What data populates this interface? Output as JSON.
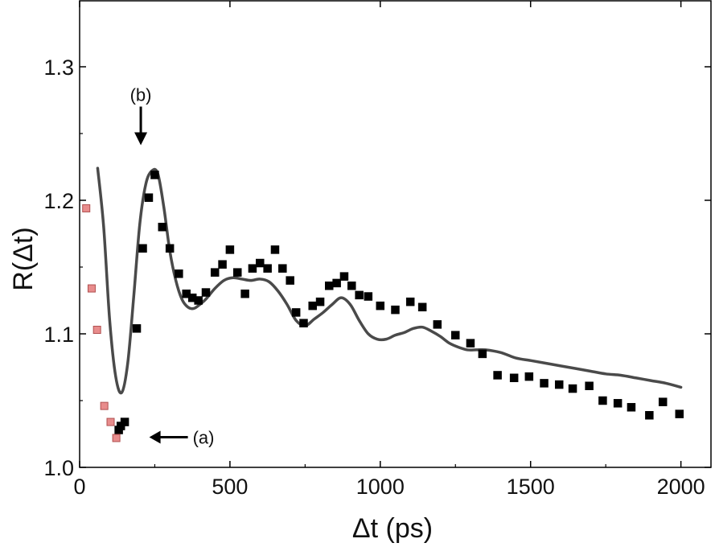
{
  "chart_data": {
    "type": "scatter",
    "title": "",
    "xlabel": "Δt (ps)",
    "ylabel": "R(Δt)",
    "xlim": [
      0,
      2100
    ],
    "ylim": [
      1.0,
      1.35
    ],
    "x_ticks": [
      0,
      500,
      1000,
      1500,
      2000
    ],
    "y_ticks": [
      1.0,
      1.1,
      1.2,
      1.3
    ],
    "x_tick_labels": [
      "0",
      "500",
      "1000",
      "1500",
      "2000"
    ],
    "y_tick_labels": [
      "1.0",
      "1.1",
      "1.2",
      "1.3"
    ],
    "grid": false,
    "legend": "none",
    "colors": {
      "primary_points": "#000000",
      "early_points_fill": "#e88c8c",
      "early_points_edge": "#b05050",
      "fit_line": "#4a4a4a"
    },
    "series": [
      {
        "kind": "markers",
        "style": "primary",
        "x": [
          130,
          137,
          150,
          190,
          210,
          230,
          250,
          275,
          300,
          330,
          355,
          375,
          395,
          420,
          450,
          475,
          500,
          525,
          550,
          575,
          600,
          625,
          650,
          675,
          700,
          720,
          745,
          775,
          800,
          830,
          855,
          880,
          905,
          930,
          960,
          1000,
          1050,
          1100,
          1140,
          1190,
          1250,
          1300,
          1340,
          1390,
          1445,
          1495,
          1545,
          1595,
          1640,
          1695,
          1740,
          1790,
          1835,
          1895,
          1940,
          1995
        ],
        "y": [
          1.028,
          1.031,
          1.034,
          1.104,
          1.164,
          1.202,
          1.219,
          1.18,
          1.164,
          1.145,
          1.13,
          1.127,
          1.125,
          1.131,
          1.146,
          1.152,
          1.163,
          1.146,
          1.13,
          1.149,
          1.153,
          1.149,
          1.163,
          1.149,
          1.14,
          1.116,
          1.108,
          1.121,
          1.124,
          1.136,
          1.138,
          1.143,
          1.136,
          1.129,
          1.128,
          1.121,
          1.118,
          1.124,
          1.12,
          1.107,
          1.099,
          1.093,
          1.085,
          1.069,
          1.067,
          1.068,
          1.063,
          1.062,
          1.059,
          1.061,
          1.05,
          1.048,
          1.045,
          1.039,
          1.049,
          1.04
        ]
      },
      {
        "kind": "markers",
        "style": "early",
        "x": [
          22,
          40,
          58,
          82,
          103,
          122
        ],
        "y": [
          1.194,
          1.134,
          1.103,
          1.046,
          1.034,
          1.022
        ]
      },
      {
        "kind": "line",
        "style": "fit",
        "x": [
          60,
          80,
          100,
          120,
          140,
          160,
          180,
          200,
          220,
          240,
          260,
          280,
          300,
          320,
          340,
          360,
          380,
          400,
          420,
          450,
          480,
          510,
          540,
          570,
          600,
          630,
          660,
          690,
          720,
          750,
          780,
          810,
          840,
          870,
          900,
          930,
          960,
          990,
          1020,
          1050,
          1080,
          1110,
          1140,
          1170,
          1200,
          1230,
          1260,
          1290,
          1320,
          1350,
          1400,
          1450,
          1500,
          1550,
          1600,
          1650,
          1700,
          1750,
          1800,
          1850,
          1900,
          1950,
          2000
        ],
        "y": [
          1.224,
          1.18,
          1.11,
          1.068,
          1.056,
          1.078,
          1.128,
          1.182,
          1.212,
          1.222,
          1.22,
          1.195,
          1.162,
          1.14,
          1.126,
          1.12,
          1.119,
          1.122,
          1.126,
          1.134,
          1.14,
          1.142,
          1.141,
          1.14,
          1.141,
          1.139,
          1.132,
          1.122,
          1.11,
          1.106,
          1.111,
          1.116,
          1.122,
          1.127,
          1.122,
          1.11,
          1.1,
          1.096,
          1.096,
          1.099,
          1.101,
          1.104,
          1.105,
          1.102,
          1.098,
          1.093,
          1.09,
          1.088,
          1.088,
          1.088,
          1.086,
          1.082,
          1.08,
          1.078,
          1.076,
          1.074,
          1.072,
          1.07,
          1.069,
          1.067,
          1.065,
          1.063,
          1.06
        ]
      }
    ],
    "annotations": [
      {
        "label": "(a)",
        "arrow": "left",
        "x": 130,
        "y": 1.028
      },
      {
        "label": "(b)",
        "arrow": "down",
        "x": 265,
        "y": 1.225
      }
    ]
  }
}
